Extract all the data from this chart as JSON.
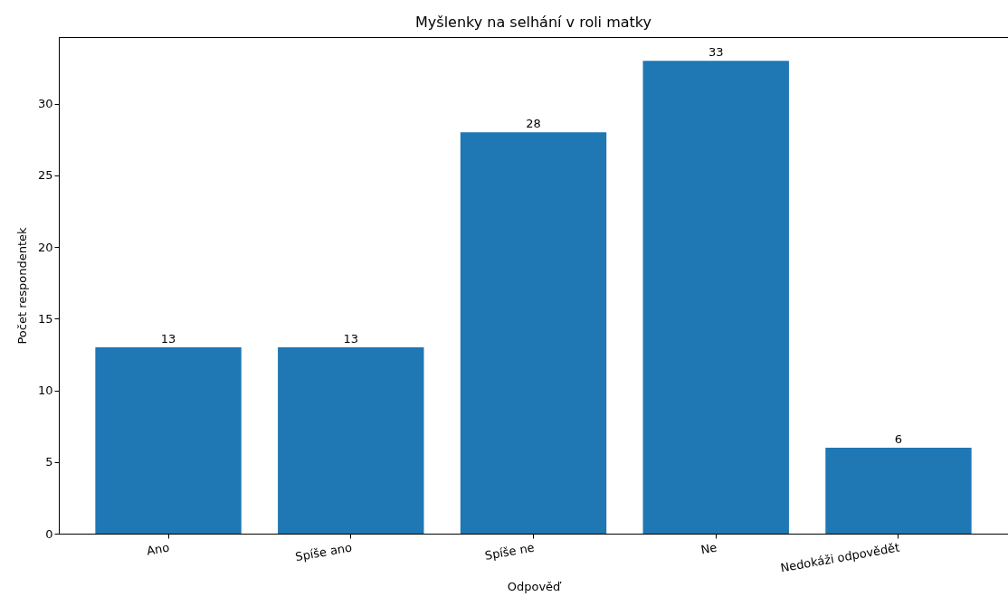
{
  "chart_data": {
    "type": "bar",
    "title": "Myšlenky na selhání v roli matky",
    "xlabel": "Odpověď",
    "ylabel": "Počet respondentek",
    "categories": [
      "Ano",
      "Spíše ano",
      "Spíše ne",
      "Ne",
      "Nedokáži odpovědět"
    ],
    "values": [
      13,
      13,
      28,
      33,
      6
    ],
    "color": "#1f77b4",
    "ylim": [
      0,
      34.65
    ],
    "yticks": [
      0,
      5,
      10,
      15,
      20,
      25,
      30
    ],
    "grid": false,
    "data_labels": true
  }
}
